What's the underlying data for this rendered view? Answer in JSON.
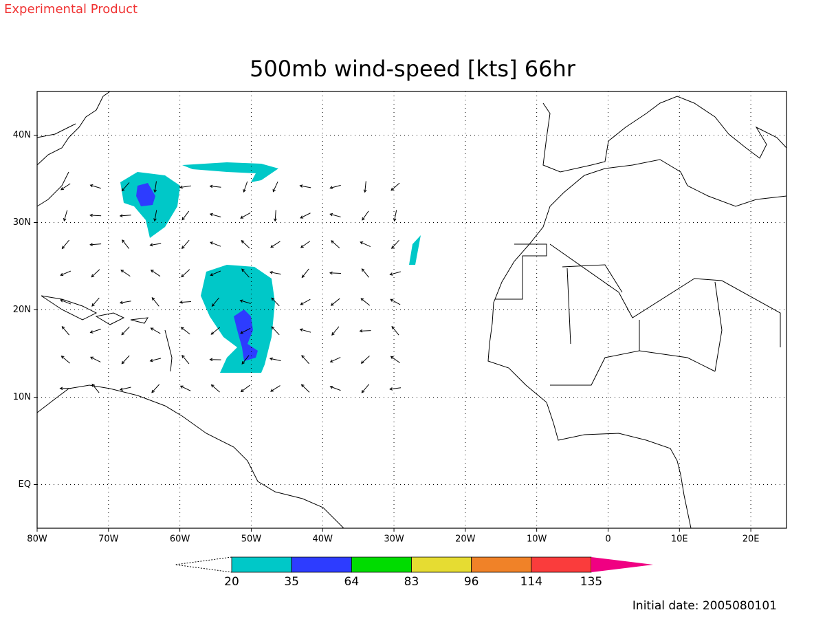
{
  "header": {
    "note": "Experimental Product"
  },
  "title": "500mb wind-speed [kts] 66hr",
  "map": {
    "xlim": [
      -80,
      25
    ],
    "ylim": [
      -5,
      45
    ],
    "xticks": [
      {
        "value": -80,
        "label": "80W"
      },
      {
        "value": -70,
        "label": "70W"
      },
      {
        "value": -60,
        "label": "60W"
      },
      {
        "value": -50,
        "label": "50W"
      },
      {
        "value": -40,
        "label": "40W"
      },
      {
        "value": -30,
        "label": "30W"
      },
      {
        "value": -20,
        "label": "20W"
      },
      {
        "value": -10,
        "label": "10W"
      },
      0,
      {
        "value": 10,
        "label": "10E"
      },
      {
        "value": 20,
        "label": "20E"
      }
    ],
    "yticks": [
      {
        "value": 0,
        "label": "EQ"
      },
      {
        "value": 10,
        "label": "10N"
      },
      {
        "value": 20,
        "label": "20N"
      },
      {
        "value": 30,
        "label": "30N"
      },
      {
        "value": 40,
        "label": "40N"
      }
    ],
    "grid": true
  },
  "colorbar": {
    "levels": [
      20,
      35,
      64,
      83,
      96,
      114,
      135
    ],
    "colors": [
      "#00c8c8",
      "#2d3cff",
      "#00dc00",
      "#e6dc32",
      "#f08228",
      "#fa3c3c",
      "#f00082"
    ]
  },
  "footer": "Initial date: 2005080101"
}
